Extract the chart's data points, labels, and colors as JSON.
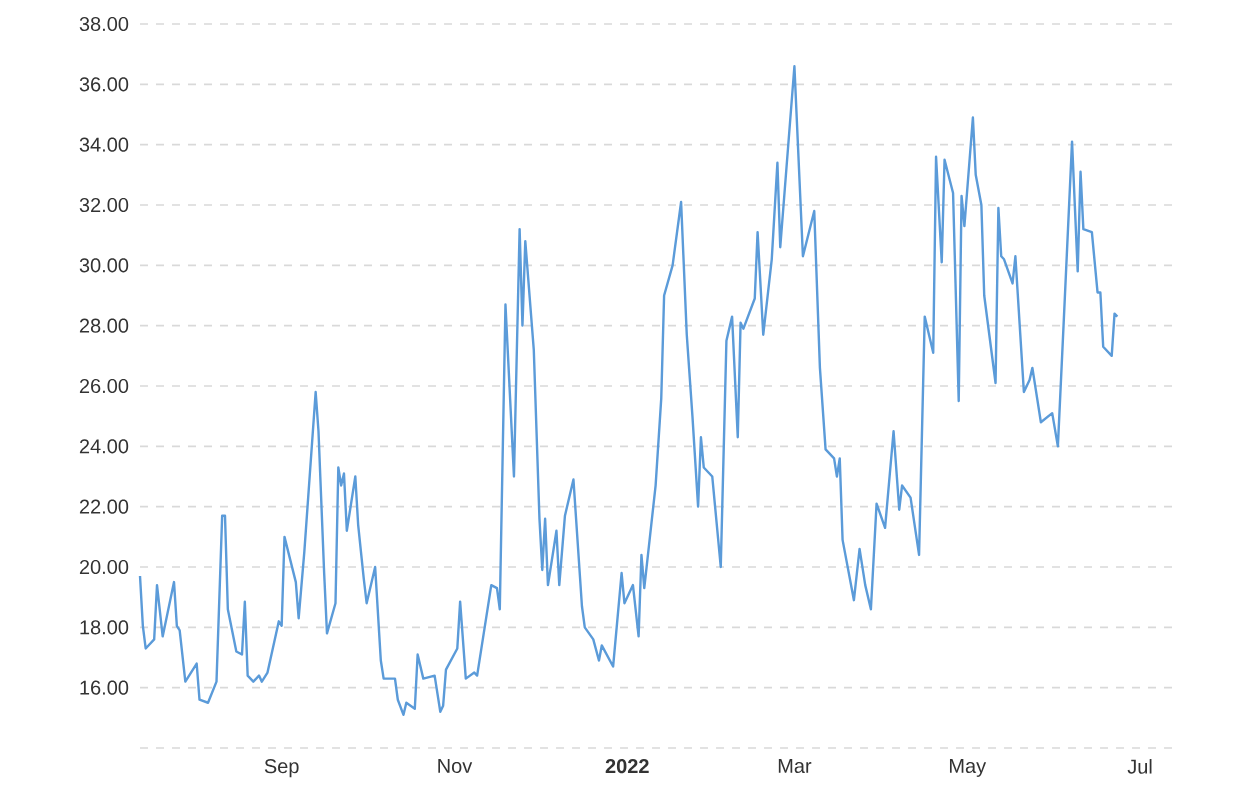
{
  "chart_data": {
    "type": "line",
    "color": "#5b9bd9",
    "grid": "y",
    "x": [
      "2021-07-13",
      "2021-07-14",
      "2021-07-15",
      "2021-07-18",
      "2021-07-19",
      "2021-07-21",
      "2021-07-25",
      "2021-07-26",
      "2021-07-27",
      "2021-07-29",
      "2021-08-02",
      "2021-08-03",
      "2021-08-06",
      "2021-08-09",
      "2021-08-11",
      "2021-08-12",
      "2021-08-13",
      "2021-08-16",
      "2021-08-18",
      "2021-08-19",
      "2021-08-20",
      "2021-08-22",
      "2021-08-24",
      "2021-08-25",
      "2021-08-27",
      "2021-08-31",
      "2021-09-01",
      "2021-09-02",
      "2021-09-06",
      "2021-09-07",
      "2021-09-09",
      "2021-09-13",
      "2021-09-14",
      "2021-09-16",
      "2021-09-17",
      "2021-09-20",
      "2021-09-21",
      "2021-09-22",
      "2021-09-23",
      "2021-09-24",
      "2021-09-27",
      "2021-09-28",
      "2021-09-30",
      "2021-10-01",
      "2021-10-04",
      "2021-10-06",
      "2021-10-07",
      "2021-10-11",
      "2021-10-12",
      "2021-10-14",
      "2021-10-15",
      "2021-10-18",
      "2021-10-19",
      "2021-10-21",
      "2021-10-25",
      "2021-10-27",
      "2021-10-28",
      "2021-10-29",
      "2021-11-02",
      "2021-11-03",
      "2021-11-05",
      "2021-11-08",
      "2021-11-09",
      "2021-11-14",
      "2021-11-16",
      "2021-11-17",
      "2021-11-19",
      "2021-11-22",
      "2021-11-24",
      "2021-11-25",
      "2021-11-26",
      "2021-11-29",
      "2021-12-01",
      "2021-12-02",
      "2021-12-03",
      "2021-12-04",
      "2021-12-07",
      "2021-12-08",
      "2021-12-10",
      "2021-12-13",
      "2021-12-16",
      "2021-12-17",
      "2021-12-20",
      "2021-12-22",
      "2021-12-23",
      "2021-12-27",
      "2021-12-30",
      "2021-12-31",
      "2022-01-03",
      "2022-01-05",
      "2022-01-06",
      "2022-01-07",
      "2022-01-11",
      "2022-01-13",
      "2022-01-14",
      "2022-01-17",
      "2022-01-20",
      "2022-01-22",
      "2022-01-24",
      "2022-01-26",
      "2022-01-27",
      "2022-01-28",
      "2022-01-31",
      "2022-02-03",
      "2022-02-05",
      "2022-02-07",
      "2022-02-09",
      "2022-02-10",
      "2022-02-11",
      "2022-02-15",
      "2022-02-16",
      "2022-02-18",
      "2022-02-21",
      "2022-02-23",
      "2022-02-24",
      "2022-03-01",
      "2022-03-04",
      "2022-03-08",
      "2022-03-10",
      "2022-03-12",
      "2022-03-15",
      "2022-03-16",
      "2022-03-17",
      "2022-03-18",
      "2022-03-22",
      "2022-03-24",
      "2022-03-26",
      "2022-03-28",
      "2022-03-30",
      "2022-04-02",
      "2022-04-05",
      "2022-04-07",
      "2022-04-08",
      "2022-04-11",
      "2022-04-14",
      "2022-04-16",
      "2022-04-19",
      "2022-04-20",
      "2022-04-22",
      "2022-04-23",
      "2022-04-26",
      "2022-04-28",
      "2022-04-29",
      "2022-04-30",
      "2022-05-03",
      "2022-05-04",
      "2022-05-06",
      "2022-05-07",
      "2022-05-11",
      "2022-05-12",
      "2022-05-13",
      "2022-05-14",
      "2022-05-17",
      "2022-05-18",
      "2022-05-21",
      "2022-05-23",
      "2022-05-24",
      "2022-05-27",
      "2022-05-31",
      "2022-06-02",
      "2022-06-04",
      "2022-06-07",
      "2022-06-09",
      "2022-06-10",
      "2022-06-11",
      "2022-06-14",
      "2022-06-16",
      "2022-06-17",
      "2022-06-18",
      "2022-06-21",
      "2022-06-22",
      "2022-06-23"
    ],
    "values": [
      19.7,
      18.05,
      17.3,
      17.6,
      19.4,
      17.7,
      19.5,
      18.05,
      17.9,
      16.2,
      16.8,
      15.6,
      15.5,
      16.2,
      21.7,
      21.7,
      18.6,
      17.2,
      17.1,
      18.85,
      16.4,
      16.2,
      16.4,
      16.2,
      16.5,
      18.2,
      18.05,
      21.0,
      19.5,
      18.3,
      20.5,
      25.8,
      24.5,
      19.8,
      17.8,
      18.8,
      23.3,
      22.7,
      23.1,
      21.2,
      23.0,
      21.4,
      19.6,
      18.8,
      20.0,
      16.9,
      16.3,
      16.3,
      15.6,
      15.1,
      15.5,
      15.3,
      17.1,
      16.3,
      16.4,
      15.2,
      15.4,
      16.6,
      17.3,
      18.85,
      16.3,
      16.5,
      16.4,
      19.4,
      19.3,
      18.6,
      28.7,
      23.0,
      31.2,
      28.0,
      30.8,
      27.2,
      21.6,
      19.9,
      21.6,
      19.4,
      21.2,
      19.4,
      21.7,
      22.9,
      18.7,
      18.0,
      17.6,
      16.9,
      17.4,
      16.7,
      19.8,
      18.8,
      19.4,
      17.7,
      20.4,
      19.3,
      22.7,
      25.6,
      29.0,
      30.0,
      32.1,
      27.7,
      25.0,
      22.0,
      24.3,
      23.3,
      23.0,
      20.0,
      27.5,
      28.3,
      24.3,
      28.1,
      27.9,
      28.9,
      31.1,
      27.7,
      30.2,
      33.4,
      30.6,
      36.6,
      30.3,
      31.8,
      26.6,
      23.9,
      23.6,
      23.0,
      23.6,
      20.9,
      18.9,
      20.6,
      19.4,
      18.6,
      22.1,
      21.3,
      24.5,
      21.9,
      22.7,
      22.3,
      20.4,
      28.3,
      27.1,
      33.6,
      30.1,
      33.5,
      32.4,
      25.5,
      32.3,
      31.3,
      34.9,
      33.0,
      32.0,
      29.0,
      26.1,
      31.9,
      30.3,
      30.2,
      29.4,
      30.3,
      25.8,
      26.2,
      26.6,
      24.8,
      25.1,
      24.0,
      28.0,
      34.1,
      29.8,
      33.1,
      31.2,
      31.1,
      29.1,
      29.1,
      27.3,
      27.0,
      28.4,
      28.3
    ],
    "xlim": [
      "2021-07-13",
      "2022-07-13"
    ],
    "xticks": [
      {
        "value": "2021-09-01",
        "label": "Sep"
      },
      {
        "value": "2021-11-01",
        "label": "Nov"
      },
      {
        "value": "2022-01-01",
        "label": "**2022**"
      },
      {
        "value": "2022-03-01",
        "label": "Mar"
      },
      {
        "value": "2022-05-01",
        "label": "May"
      },
      {
        "value": "2022-07-01",
        "label": "Jul"
      }
    ],
    "ylim": [
      14,
      38
    ],
    "yticks": [
      {
        "value": 14,
        "label": null
      },
      {
        "value": 16,
        "label": "16.00"
      },
      {
        "value": 18,
        "label": "18.00"
      },
      {
        "value": 20,
        "label": "20.00"
      },
      {
        "value": 22,
        "label": "22.00"
      },
      {
        "value": 24,
        "label": "24.00"
      },
      {
        "value": 26,
        "label": "26.00"
      },
      {
        "value": 28,
        "label": "28.00"
      },
      {
        "value": 30,
        "label": "30.00"
      },
      {
        "value": 32,
        "label": "32.00"
      },
      {
        "value": 34,
        "label": "34.00"
      },
      {
        "value": 36,
        "label": "36.00"
      },
      {
        "value": 38,
        "label": "38.00"
      }
    ]
  }
}
